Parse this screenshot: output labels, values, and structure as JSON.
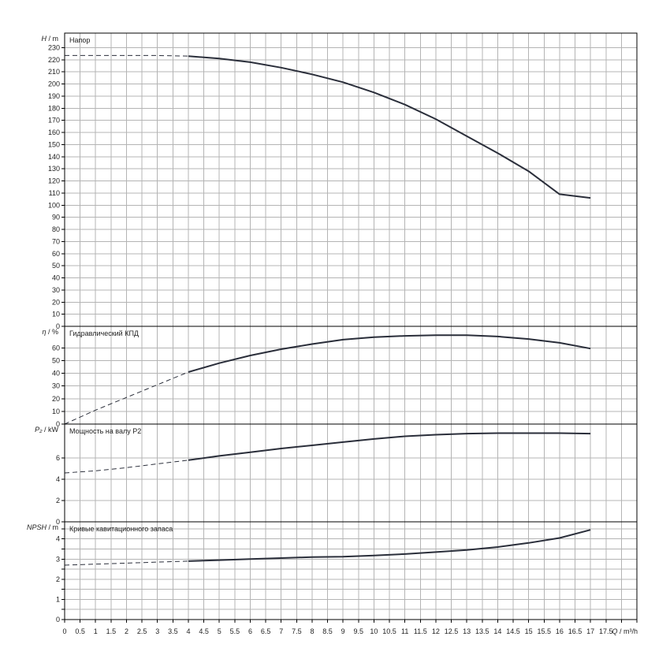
{
  "chart_data": {
    "type": "line",
    "x": {
      "label": "Q",
      "unit": "m³/h",
      "ticks": [
        "0",
        "0.5",
        "1",
        "1.5",
        "2",
        "2.5",
        "3",
        "3.5",
        "4",
        "4.5",
        "5",
        "5.5",
        "6",
        "6.5",
        "7",
        "7.5",
        "8",
        "8.5",
        "9",
        "9.5",
        "10",
        "10.5",
        "11",
        "11.5",
        "12",
        "12.5",
        "13",
        "13.5",
        "14",
        "14.5",
        "15",
        "15.5",
        "16",
        "16.5",
        "17",
        "17.5"
      ],
      "range": [
        0,
        18.5
      ]
    },
    "panels": [
      {
        "id": "head",
        "title": "Напор",
        "ylabel": "H",
        "yunit": "m",
        "ylim": [
          0,
          242
        ],
        "yticks": [
          0,
          10,
          20,
          30,
          40,
          50,
          60,
          70,
          80,
          90,
          100,
          110,
          120,
          130,
          140,
          150,
          160,
          170,
          180,
          190,
          200,
          210,
          220,
          230
        ],
        "dashed": [
          [
            0,
            223.5
          ],
          [
            1,
            223.5
          ],
          [
            2,
            223.5
          ],
          [
            3,
            223.5
          ],
          [
            4,
            223
          ]
        ],
        "solid": [
          [
            4,
            223
          ],
          [
            5,
            221
          ],
          [
            6,
            218
          ],
          [
            7,
            213.5
          ],
          [
            8,
            208
          ],
          [
            9,
            201.5
          ],
          [
            10,
            193
          ],
          [
            11,
            183
          ],
          [
            12,
            171
          ],
          [
            13,
            157
          ],
          [
            14,
            143
          ],
          [
            15,
            128
          ],
          [
            16,
            109
          ],
          [
            17,
            106
          ]
        ]
      },
      {
        "id": "eff",
        "title": "Гидравлический КПД",
        "ylabel": "η",
        "yunit": "%",
        "ylim": [
          0,
          77
        ],
        "yticks": [
          0,
          10,
          20,
          30,
          40,
          50,
          60
        ],
        "dashed": [
          [
            0,
            0
          ],
          [
            1,
            11
          ],
          [
            2,
            21
          ],
          [
            3,
            31
          ],
          [
            4,
            41
          ]
        ],
        "solid": [
          [
            4,
            41
          ],
          [
            5,
            48
          ],
          [
            6,
            54
          ],
          [
            7,
            59
          ],
          [
            8,
            63
          ],
          [
            9,
            66.5
          ],
          [
            10,
            68.5
          ],
          [
            11,
            69.5
          ],
          [
            12,
            70
          ],
          [
            13,
            70
          ],
          [
            14,
            69
          ],
          [
            15,
            67
          ],
          [
            16,
            64
          ],
          [
            17,
            59.5
          ]
        ]
      },
      {
        "id": "power",
        "title": "Мощность на валу P2",
        "ylabel": "P₂",
        "yunit": "kW",
        "ylim": [
          0,
          9.2
        ],
        "yticks": [
          0,
          2,
          4,
          6
        ],
        "dashed": [
          [
            0,
            4.6
          ],
          [
            1,
            4.8
          ],
          [
            2,
            5.1
          ],
          [
            3,
            5.45
          ],
          [
            4,
            5.8
          ]
        ],
        "solid": [
          [
            4,
            5.8
          ],
          [
            5,
            6.2
          ],
          [
            6,
            6.55
          ],
          [
            7,
            6.9
          ],
          [
            8,
            7.2
          ],
          [
            9,
            7.5
          ],
          [
            10,
            7.8
          ],
          [
            11,
            8.05
          ],
          [
            12,
            8.2
          ],
          [
            13,
            8.3
          ],
          [
            14,
            8.35
          ],
          [
            15,
            8.35
          ],
          [
            16,
            8.35
          ],
          [
            17,
            8.3
          ]
        ]
      },
      {
        "id": "npsh",
        "title": "Кривые кавитационного запаса",
        "ylabel": "NPSH",
        "yunit": "m",
        "ylim": [
          0,
          4.85
        ],
        "yticks": [
          0,
          0.5,
          1,
          1.5,
          2,
          2.5,
          3,
          3.5,
          4,
          4.5
        ],
        "ytick_labels": [
          "0",
          "",
          "1",
          "",
          "2",
          "",
          "3",
          "",
          "4",
          ""
        ],
        "dashed": [
          [
            0,
            2.7
          ],
          [
            1,
            2.75
          ],
          [
            2,
            2.8
          ],
          [
            3,
            2.85
          ],
          [
            4,
            2.9
          ]
        ],
        "solid": [
          [
            4,
            2.9
          ],
          [
            5,
            2.95
          ],
          [
            6,
            3.0
          ],
          [
            7,
            3.05
          ],
          [
            8,
            3.1
          ],
          [
            9,
            3.12
          ],
          [
            10,
            3.18
          ],
          [
            11,
            3.25
          ],
          [
            12,
            3.35
          ],
          [
            13,
            3.45
          ],
          [
            14,
            3.6
          ],
          [
            15,
            3.8
          ],
          [
            16,
            4.05
          ],
          [
            17,
            4.45
          ]
        ]
      }
    ],
    "colors": {
      "grid": "#b4b4b4",
      "frame": "#000000",
      "curve": "#2a2e3a"
    }
  }
}
